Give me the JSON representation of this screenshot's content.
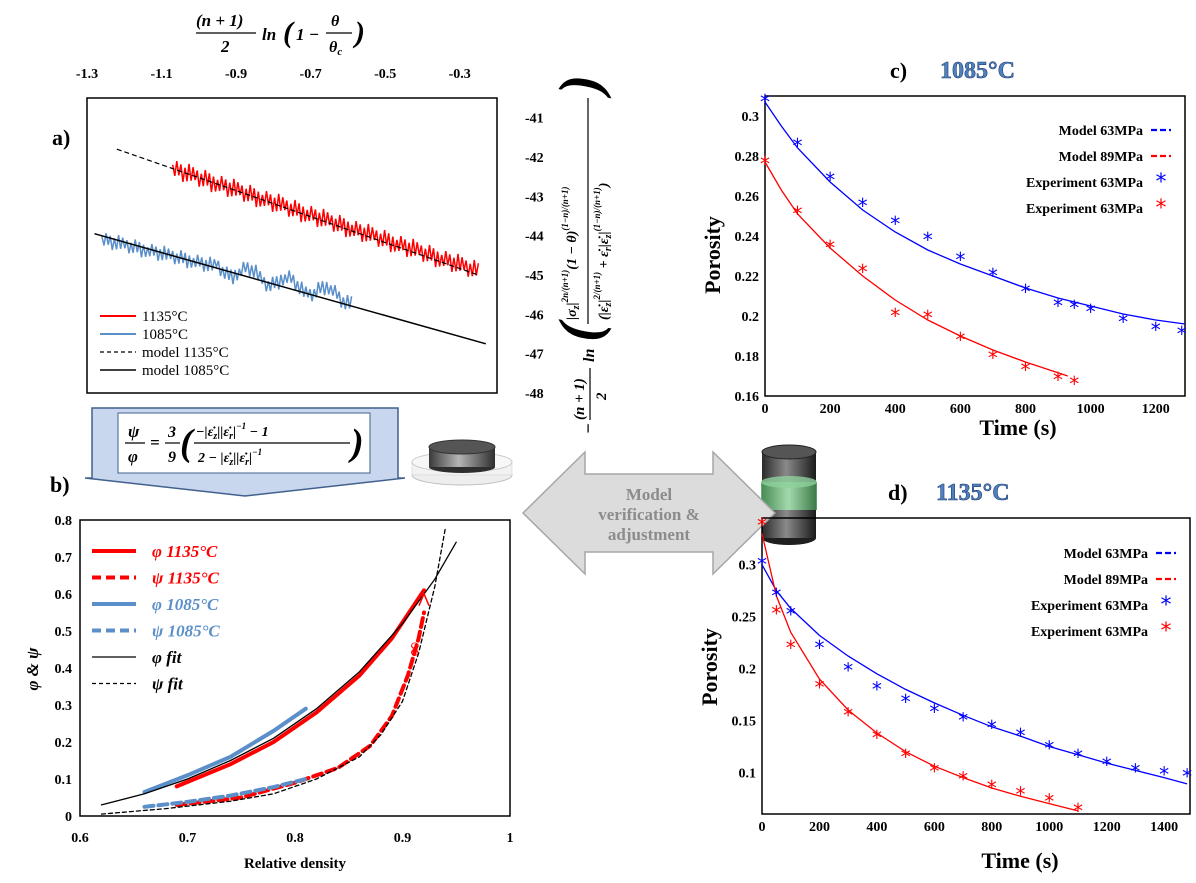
{
  "panels": {
    "a": {
      "letter": "a)"
    },
    "b": {
      "letter": "b)"
    },
    "c": {
      "letter": "c)",
      "title": "1085°C"
    },
    "d": {
      "letter": "d)",
      "title": "1135°C"
    }
  },
  "center_arrow": {
    "line1": "Model",
    "line2": "verification &",
    "line3": "adjustment"
  },
  "formulas": {
    "a_top": "(n+1)/2 ln(1 − θ/θc)",
    "a_right": "−(n+1)/2 ln( |σz|^(2n/(n+1)) (1−θ)^((1−n)/(n+1)) / ( |ε̇z|^(2/(n+1)) + ε̇r|ε̇z|^((1−n)/(n+1)) ) )",
    "b_box": "ψ/φ = 3/9 ( (−|ε̇z||ε̇r|^−1 − 1) / (2 − |ε̇z||ε̇r|^−1) )"
  },
  "colors": {
    "red": "#ff0000",
    "blue": "#0000ff",
    "steel": "#5b8fc9",
    "black": "#000000",
    "arrow_gray": "#d8d8d8",
    "box_blue": "#c9d7ee"
  },
  "icons": [
    "disc-specimen-icon",
    "cylinder-specimen-icon"
  ],
  "chart_data": [
    {
      "id": "a",
      "type": "line",
      "x_top_ticks": [
        "-1.3",
        "-1.1",
        "-0.9",
        "-0.7",
        "-0.5",
        "-0.3"
      ],
      "y_right_ticks": [
        "-41",
        "-42",
        "-43",
        "-44",
        "-45",
        "-46",
        "-47",
        "-48"
      ],
      "xlim": [
        -1.3,
        -0.2
      ],
      "ylim": [
        -48,
        -40.5
      ],
      "series": [
        {
          "name": "1135°C",
          "style": "noisy-red",
          "x": [
            -1.07,
            -0.25
          ],
          "y": [
            -42.3,
            -44.9
          ]
        },
        {
          "name": "1085°C",
          "style": "noisy-blue",
          "x": [
            -1.26,
            -0.59
          ],
          "y": [
            -44.1,
            -45.6
          ]
        },
        {
          "name": "model 1135°C",
          "style": "dashed",
          "x": [
            -1.22,
            -0.25
          ],
          "y": [
            -41.8,
            -45.0
          ]
        },
        {
          "name": "model 1085°C",
          "style": "solid",
          "x": [
            -1.28,
            -0.23
          ],
          "y": [
            -43.95,
            -46.75
          ]
        }
      ]
    },
    {
      "id": "b",
      "type": "line",
      "xlabel": "Relative density",
      "ylabel": "φ & ψ",
      "x_ticks": [
        "0.6",
        "0.7",
        "0.8",
        "0.9",
        "1"
      ],
      "y_ticks": [
        "0",
        "0.1",
        "0.2",
        "0.3",
        "0.4",
        "0.5",
        "0.6",
        "0.7",
        "0.8"
      ],
      "xlim": [
        0.6,
        1.0
      ],
      "ylim": [
        0,
        0.8
      ],
      "annotation": "∞",
      "series": [
        {
          "name": "φ 1135°C",
          "color": "#ff0000",
          "dash": "solid",
          "x": [
            0.69,
            0.74,
            0.78,
            0.82,
            0.86,
            0.89,
            0.92
          ],
          "y": [
            0.08,
            0.14,
            0.2,
            0.28,
            0.38,
            0.48,
            0.61
          ]
        },
        {
          "name": "ψ 1135°C",
          "color": "#ff0000",
          "dash": "dashed",
          "x": [
            0.69,
            0.75,
            0.8,
            0.84,
            0.87,
            0.89,
            0.905,
            0.915,
            0.92
          ],
          "y": [
            0.03,
            0.05,
            0.09,
            0.13,
            0.19,
            0.27,
            0.38,
            0.48,
            0.55
          ]
        },
        {
          "name": "φ 1085°C",
          "color": "#5b8fc9",
          "dash": "solid",
          "x": [
            0.66,
            0.7,
            0.74,
            0.78,
            0.81
          ],
          "y": [
            0.065,
            0.11,
            0.16,
            0.23,
            0.29
          ]
        },
        {
          "name": "ψ 1085°C",
          "color": "#5b8fc9",
          "dash": "dashed",
          "x": [
            0.66,
            0.7,
            0.74,
            0.78,
            0.81
          ],
          "y": [
            0.025,
            0.038,
            0.055,
            0.078,
            0.1
          ]
        },
        {
          "name": "φ fit",
          "color": "#000000",
          "dash": "solid",
          "x": [
            0.62,
            0.66,
            0.7,
            0.74,
            0.78,
            0.82,
            0.86,
            0.9,
            0.93,
            0.95
          ],
          "y": [
            0.03,
            0.06,
            0.1,
            0.15,
            0.21,
            0.29,
            0.39,
            0.52,
            0.64,
            0.74
          ]
        },
        {
          "name": "ψ fit",
          "color": "#000000",
          "dash": "dashed",
          "x": [
            0.62,
            0.68,
            0.74,
            0.78,
            0.82,
            0.86,
            0.88,
            0.9,
            0.915,
            0.93,
            0.94
          ],
          "y": [
            0.005,
            0.02,
            0.04,
            0.06,
            0.1,
            0.16,
            0.22,
            0.31,
            0.44,
            0.62,
            0.78
          ]
        }
      ]
    },
    {
      "id": "c",
      "type": "scatter",
      "xlabel": "Time (s)",
      "ylabel": "Porosity",
      "x_ticks": [
        "0",
        "200",
        "400",
        "600",
        "800",
        "1000",
        "1200"
      ],
      "y_ticks": [
        "0.16",
        "0.18",
        "0.2",
        "0.22",
        "0.24",
        "0.26",
        "0.28",
        "0.3"
      ],
      "xlim": [
        0,
        1290
      ],
      "ylim": [
        0.16,
        0.31
      ],
      "series": [
        {
          "name": "Model 63MPa",
          "color": "#0000ff",
          "kind": "line",
          "x": [
            0,
            50,
            100,
            200,
            300,
            400,
            500,
            600,
            700,
            800,
            900,
            1000,
            1100,
            1200,
            1290
          ],
          "y": [
            0.307,
            0.295,
            0.284,
            0.267,
            0.253,
            0.242,
            0.233,
            0.226,
            0.22,
            0.214,
            0.209,
            0.205,
            0.201,
            0.198,
            0.196
          ]
        },
        {
          "name": "Model 89MPa",
          "color": "#ff0000",
          "kind": "line",
          "x": [
            0,
            50,
            100,
            200,
            300,
            400,
            500,
            600,
            700,
            800,
            930
          ],
          "y": [
            0.277,
            0.263,
            0.251,
            0.234,
            0.22,
            0.208,
            0.198,
            0.19,
            0.183,
            0.177,
            0.17
          ]
        },
        {
          "name": "Experiment 63MPa",
          "color": "#0000ff",
          "kind": "marker",
          "x": [
            0,
            100,
            200,
            300,
            400,
            500,
            600,
            700,
            800,
            900,
            950,
            1000,
            1100,
            1200,
            1280
          ],
          "y": [
            0.307,
            0.285,
            0.268,
            0.255,
            0.246,
            0.238,
            0.228,
            0.22,
            0.212,
            0.205,
            0.204,
            0.202,
            0.197,
            0.193,
            0.191
          ]
        },
        {
          "name": "Experiment 63MPa",
          "color": "#ff0000",
          "kind": "marker",
          "x": [
            0,
            100,
            200,
            300,
            400,
            500,
            600,
            700,
            800,
            900,
            950
          ],
          "y": [
            0.276,
            0.251,
            0.234,
            0.222,
            0.2,
            0.199,
            0.188,
            0.179,
            0.173,
            0.168,
            0.166
          ]
        }
      ]
    },
    {
      "id": "d",
      "type": "scatter",
      "xlabel": "Time (s)",
      "ylabel": "Porosity",
      "x_ticks": [
        "0",
        "200",
        "400",
        "600",
        "800",
        "1000",
        "1200",
        "1400"
      ],
      "y_ticks": [
        "0.1",
        "0.15",
        "0.2",
        "0.25",
        "0.3"
      ],
      "xlim": [
        0,
        1490
      ],
      "ylim": [
        0.06,
        0.345
      ],
      "series": [
        {
          "name": "Model 63MPa",
          "color": "#0000ff",
          "kind": "line",
          "x": [
            0,
            50,
            100,
            200,
            300,
            400,
            500,
            600,
            700,
            800,
            900,
            1000,
            1100,
            1200,
            1300,
            1400,
            1480
          ],
          "y": [
            0.3,
            0.275,
            0.258,
            0.232,
            0.212,
            0.195,
            0.18,
            0.167,
            0.155,
            0.144,
            0.135,
            0.125,
            0.117,
            0.109,
            0.102,
            0.095,
            0.089
          ]
        },
        {
          "name": "Model 89MPa",
          "color": "#ff0000",
          "kind": "line",
          "x": [
            0,
            50,
            100,
            200,
            300,
            400,
            500,
            600,
            700,
            800,
            900,
            1000,
            1100
          ],
          "y": [
            0.33,
            0.27,
            0.235,
            0.19,
            0.16,
            0.138,
            0.12,
            0.106,
            0.095,
            0.085,
            0.077,
            0.07,
            0.063
          ]
        },
        {
          "name": "Experiment 63MPa",
          "color": "#0000ff",
          "kind": "marker",
          "x": [
            0,
            50,
            100,
            200,
            300,
            400,
            500,
            600,
            700,
            800,
            900,
            1000,
            1100,
            1200,
            1300,
            1400,
            1480
          ],
          "y": [
            0.3,
            0.27,
            0.252,
            0.22,
            0.198,
            0.18,
            0.168,
            0.158,
            0.15,
            0.143,
            0.135,
            0.123,
            0.115,
            0.107,
            0.101,
            0.098,
            0.096
          ]
        },
        {
          "name": "Experiment 63MPa",
          "color": "#ff0000",
          "kind": "marker",
          "x": [
            0,
            50,
            100,
            200,
            300,
            400,
            500,
            600,
            700,
            800,
            900,
            1000,
            1100
          ],
          "y": [
            0.338,
            0.253,
            0.22,
            0.182,
            0.155,
            0.133,
            0.115,
            0.101,
            0.093,
            0.085,
            0.079,
            0.072,
            0.063
          ]
        }
      ]
    }
  ]
}
